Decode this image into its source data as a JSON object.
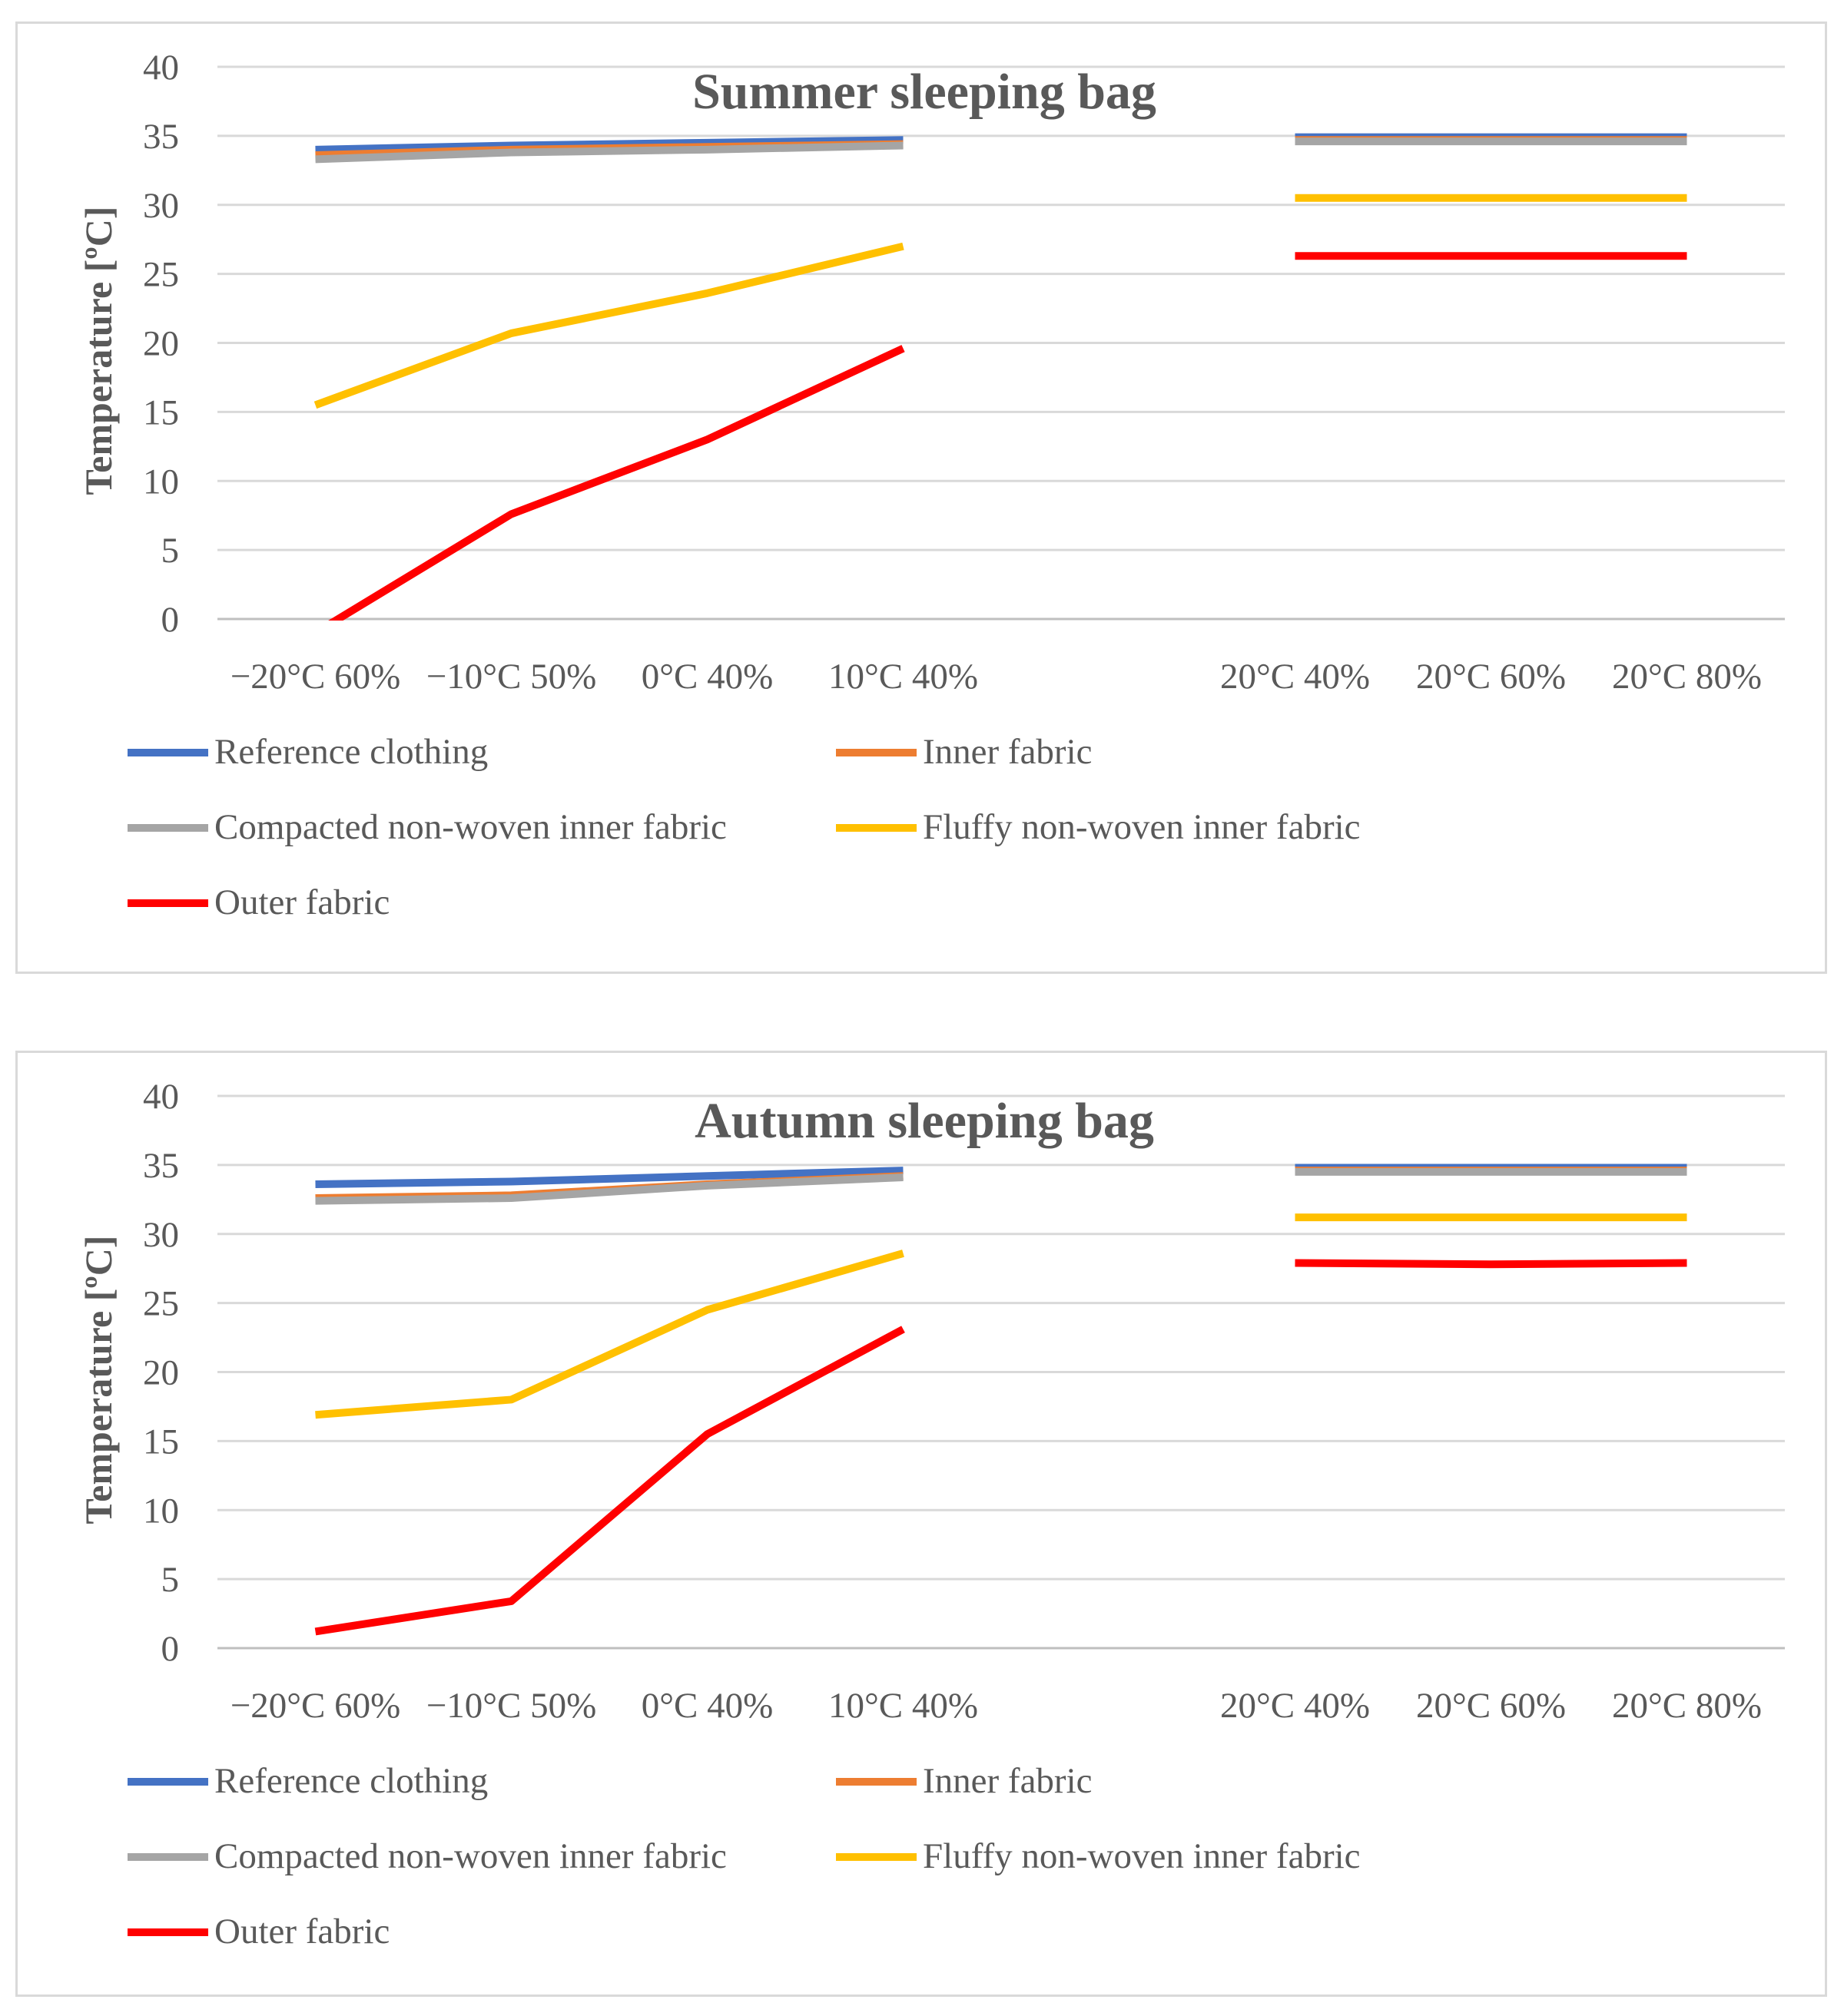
{
  "chart_data": [
    {
      "type": "line",
      "title": "Summer sleeping bag",
      "ylabel": "Temperature  [ºC]",
      "xlabel": "",
      "ylim": [
        0,
        40
      ],
      "yticks": [
        "0",
        "5",
        "10",
        "15",
        "20",
        "25",
        "30",
        "35",
        "40"
      ],
      "categories": [
        "−20°C 60%",
        "−10°C 50%",
        "0°C 40%",
        "10°C 40%",
        "",
        "20°C 40%",
        "20°C 60%",
        "20°C 80%"
      ],
      "grid": true,
      "legend_position": "bottom",
      "series": [
        {
          "name": "Reference clothing",
          "color": "#4472c4",
          "values": [
            34.0,
            34.3,
            34.5,
            34.7,
            null,
            34.9,
            34.9,
            34.9
          ]
        },
        {
          "name": "Inner fabric",
          "color": "#ed7d31",
          "values": [
            33.6,
            34.0,
            34.2,
            34.4,
            null,
            34.7,
            34.7,
            34.7
          ]
        },
        {
          "name": "Compacted non-woven inner fabric",
          "color": "#a5a5a5",
          "values": [
            33.3,
            33.8,
            34.0,
            34.3,
            null,
            34.6,
            34.6,
            34.6
          ]
        },
        {
          "name": "Fluffy non-woven inner fabric",
          "color": "#ffc000",
          "values": [
            15.5,
            20.7,
            23.6,
            27.0,
            null,
            30.5,
            30.5,
            30.5
          ]
        },
        {
          "name": "Outer fabric",
          "color": "#ff0000",
          "values": [
            -1.0,
            7.6,
            13.0,
            19.6,
            null,
            26.3,
            26.3,
            26.3
          ]
        }
      ]
    },
    {
      "type": "line",
      "title": "Autumn sleeping bag",
      "ylabel": "Temperature  [ºC]",
      "xlabel": "",
      "ylim": [
        0,
        40
      ],
      "yticks": [
        "0",
        "5",
        "10",
        "15",
        "20",
        "25",
        "30",
        "35",
        "40"
      ],
      "categories": [
        "−20°C 60%",
        "−10°C 50%",
        "0°C 40%",
        "10°C 40%",
        "",
        "20°C 40%",
        "20°C 60%",
        "20°C 80%"
      ],
      "grid": true,
      "legend_position": "bottom",
      "series": [
        {
          "name": "Reference clothing",
          "color": "#4472c4",
          "values": [
            33.6,
            33.8,
            34.2,
            34.6,
            null,
            34.8,
            34.8,
            34.8
          ]
        },
        {
          "name": "Inner fabric",
          "color": "#ed7d31",
          "values": [
            32.6,
            32.8,
            33.6,
            34.2,
            null,
            34.6,
            34.6,
            34.6
          ]
        },
        {
          "name": "Compacted non-woven inner fabric",
          "color": "#a5a5a5",
          "values": [
            32.4,
            32.6,
            33.5,
            34.1,
            null,
            34.5,
            34.5,
            34.5
          ]
        },
        {
          "name": "Fluffy non-woven inner fabric",
          "color": "#ffc000",
          "values": [
            16.9,
            18.0,
            24.5,
            28.6,
            null,
            31.2,
            31.2,
            31.2
          ]
        },
        {
          "name": "Outer fabric",
          "color": "#ff0000",
          "values": [
            1.2,
            3.4,
            15.5,
            23.1,
            null,
            27.9,
            27.8,
            27.9
          ]
        }
      ]
    }
  ]
}
